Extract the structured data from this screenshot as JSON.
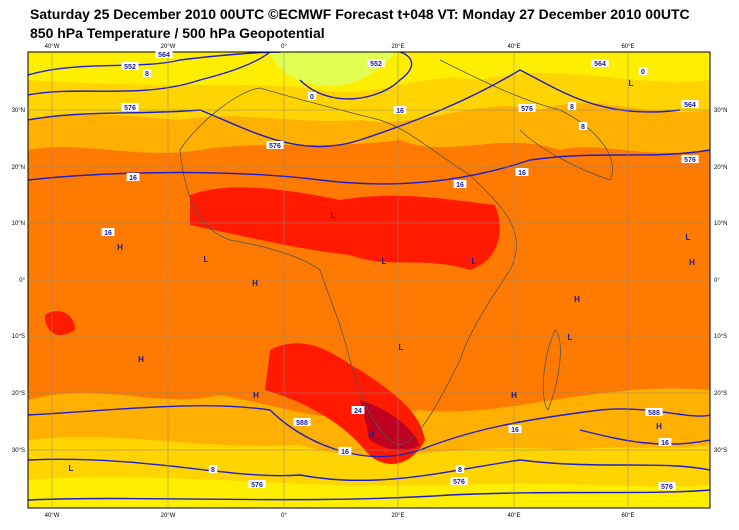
{
  "header": {
    "title": "Saturday 25 December 2010 00UTC ©ECMWF Forecast t+048 VT: Monday 27 December 2010 00UTC",
    "subtitle": "850 hPa Temperature / 500 hPa Geopotential"
  },
  "map": {
    "lon_labels": [
      "40°W",
      "20°W",
      "0°",
      "20°E",
      "40°E",
      "60°E"
    ],
    "lat_labels": [
      "30°N",
      "20°N",
      "10°N",
      "0°",
      "10°S",
      "20°S",
      "30°S"
    ],
    "contour_labels": [
      "552",
      "564",
      "576",
      "8",
      "0",
      "552",
      "16",
      "576",
      "16",
      "16",
      "16",
      "16",
      "564",
      "0",
      "8",
      "8",
      "564",
      "576",
      "576",
      "24",
      "588",
      "16",
      "8",
      "576",
      "8",
      "576",
      "16",
      "588",
      "16",
      "576"
    ],
    "centers": [
      "H",
      "L",
      "H",
      "L",
      "L",
      "L",
      "H",
      "L",
      "L",
      "L",
      "H",
      "H",
      "H",
      "H",
      "H",
      "H",
      "L",
      "L"
    ]
  }
}
